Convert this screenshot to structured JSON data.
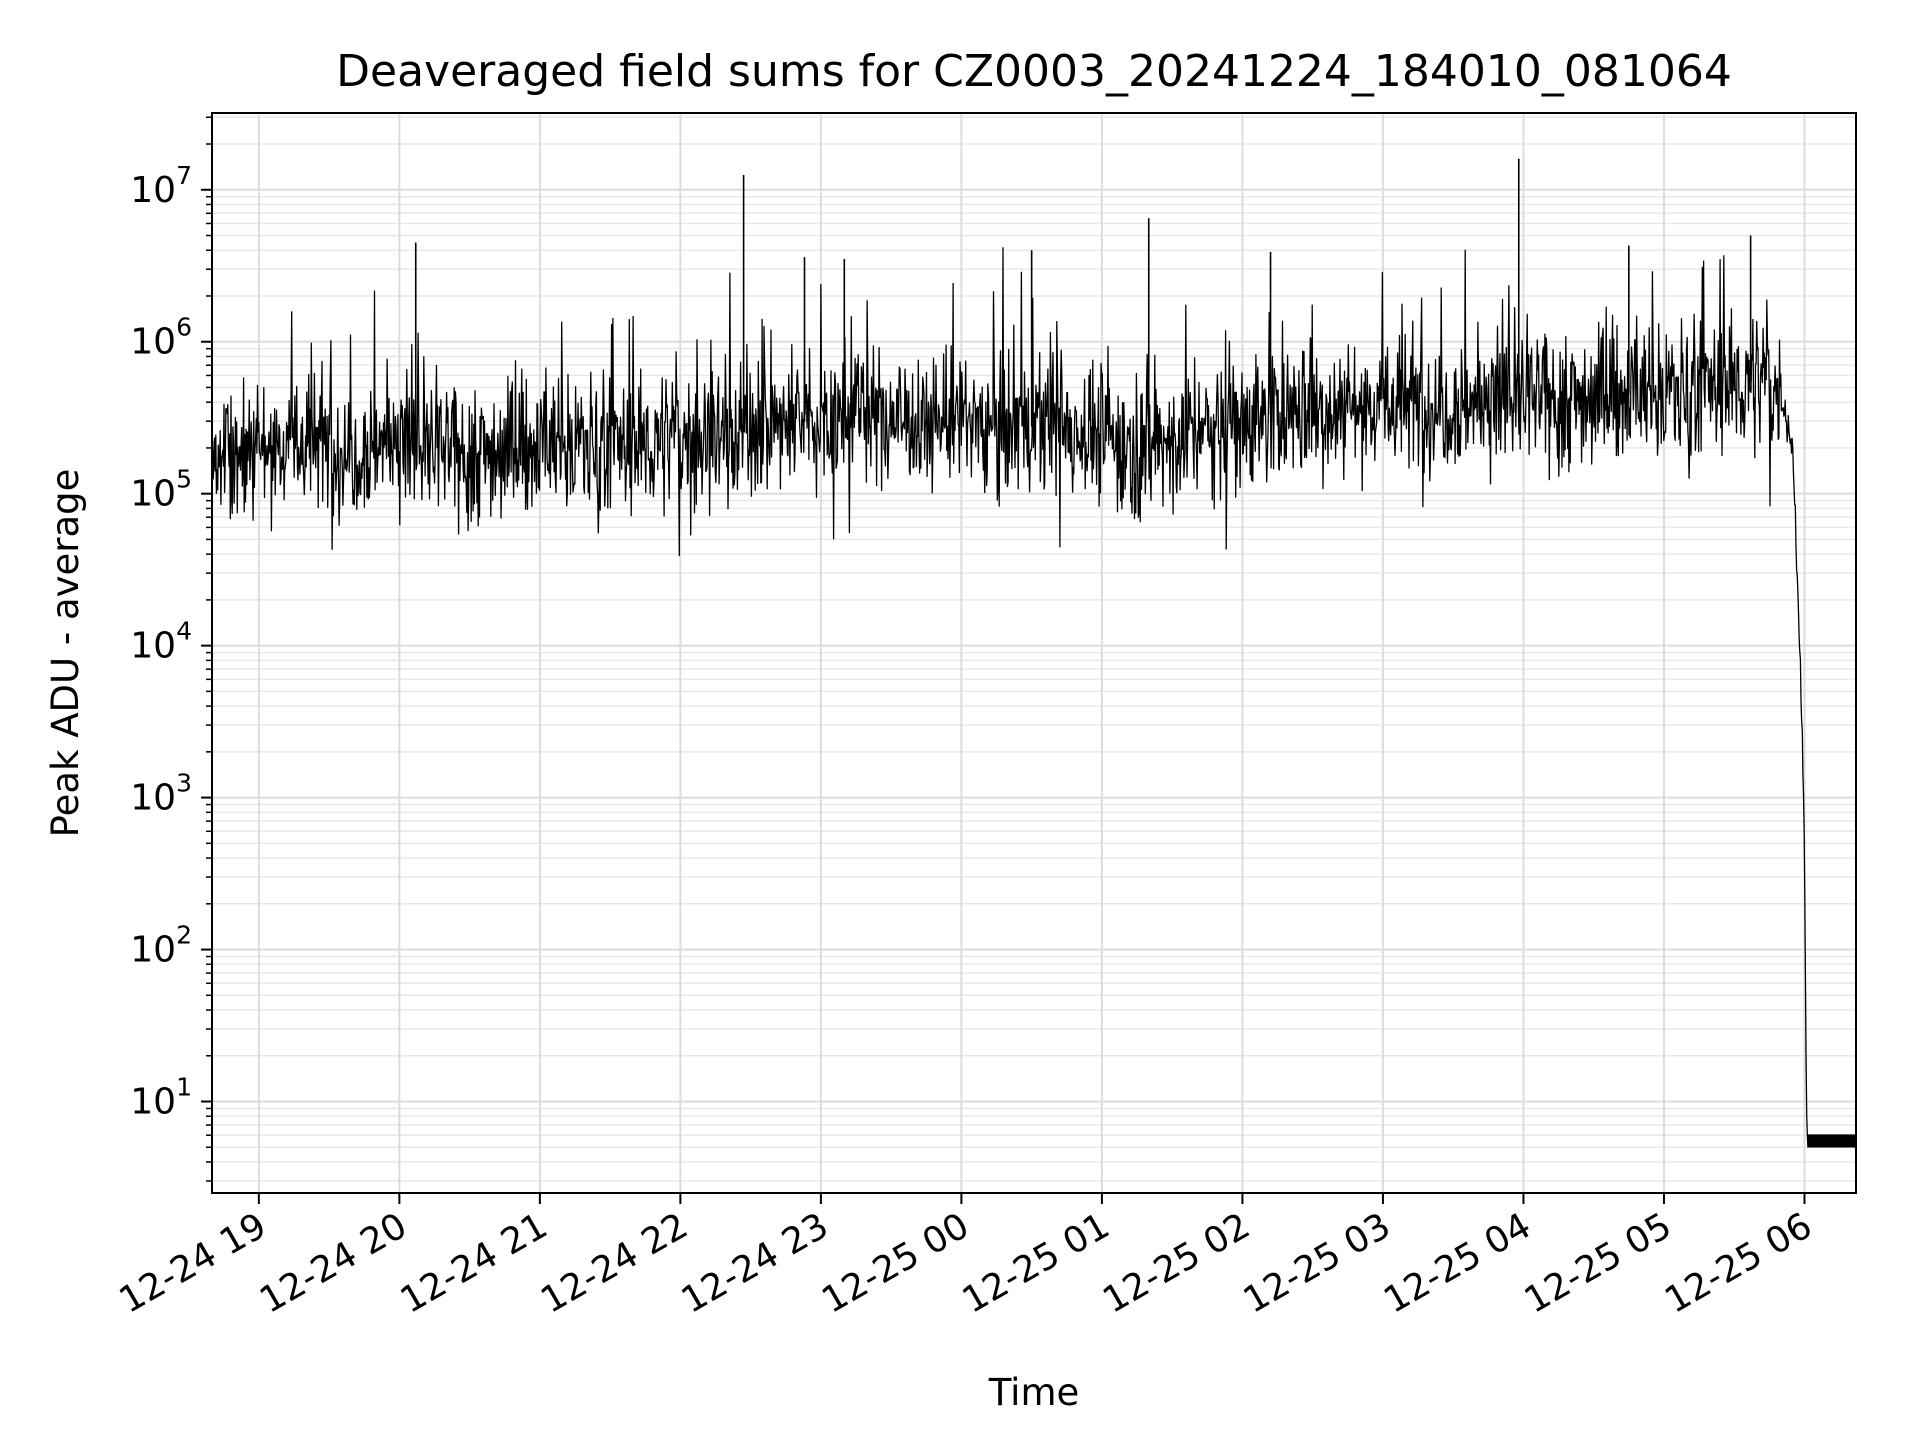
{
  "chart_data": {
    "type": "line",
    "title": "Deaveraged field sums for CZ0003_20241224_184010_081064",
    "xlabel": "Time",
    "ylabel": "Peak ADU - average",
    "yscale": "log",
    "ylim": [
      2.5,
      32000000
    ],
    "xlim": [
      "2024-12-24T18:40",
      "2024-12-25T06:22"
    ],
    "grid": {
      "major": true,
      "minor": true
    },
    "line_color": "#000000",
    "x_ticks": [
      {
        "at": "2024-12-24T19:00",
        "label": "12-24 19"
      },
      {
        "at": "2024-12-24T20:00",
        "label": "12-24 20"
      },
      {
        "at": "2024-12-24T21:00",
        "label": "12-24 21"
      },
      {
        "at": "2024-12-24T22:00",
        "label": "12-24 22"
      },
      {
        "at": "2024-12-24T23:00",
        "label": "12-24 23"
      },
      {
        "at": "2024-12-25T00:00",
        "label": "12-25 00"
      },
      {
        "at": "2024-12-25T01:00",
        "label": "12-25 01"
      },
      {
        "at": "2024-12-25T02:00",
        "label": "12-25 02"
      },
      {
        "at": "2024-12-25T03:00",
        "label": "12-25 03"
      },
      {
        "at": "2024-12-25T04:00",
        "label": "12-25 04"
      },
      {
        "at": "2024-12-25T05:00",
        "label": "12-25 05"
      },
      {
        "at": "2024-12-25T06:00",
        "label": "12-25 06"
      }
    ],
    "y_ticks": [
      {
        "value": 10,
        "base": "10",
        "exp": "1"
      },
      {
        "value": 100,
        "base": "10",
        "exp": "2"
      },
      {
        "value": 1000,
        "base": "10",
        "exp": "3"
      },
      {
        "value": 10000,
        "base": "10",
        "exp": "4"
      },
      {
        "value": 100000,
        "base": "10",
        "exp": "5"
      },
      {
        "value": 1000000,
        "base": "10",
        "exp": "6"
      },
      {
        "value": 10000000,
        "base": "10",
        "exp": "7"
      }
    ],
    "series": [
      {
        "x": [
          "2024-12-24T18:40",
          "2024-12-24T18:55",
          "2024-12-24T19:10",
          "2024-12-24T19:25",
          "2024-12-24T19:40",
          "2024-12-24T19:55",
          "2024-12-24T20:10",
          "2024-12-24T20:25",
          "2024-12-24T20:40",
          "2024-12-24T20:55",
          "2024-12-24T21:10",
          "2024-12-24T21:25",
          "2024-12-24T21:40",
          "2024-12-24T21:55",
          "2024-12-24T22:10",
          "2024-12-24T22:25",
          "2024-12-24T22:40",
          "2024-12-24T22:55",
          "2024-12-24T23:10",
          "2024-12-24T23:25",
          "2024-12-24T23:40",
          "2024-12-24T23:55",
          "2024-12-25T00:10",
          "2024-12-25T00:25",
          "2024-12-25T00:40",
          "2024-12-25T00:55",
          "2024-12-25T01:10",
          "2024-12-25T01:25",
          "2024-12-25T01:40",
          "2024-12-25T01:55",
          "2024-12-25T02:10",
          "2024-12-25T02:25",
          "2024-12-25T02:40",
          "2024-12-25T02:55",
          "2024-12-25T03:10",
          "2024-12-25T03:25",
          "2024-12-25T03:40",
          "2024-12-25T03:55",
          "2024-12-25T04:10",
          "2024-12-25T04:25",
          "2024-12-25T04:40",
          "2024-12-25T04:55",
          "2024-12-25T05:10",
          "2024-12-25T05:25",
          "2024-12-25T05:40",
          "2024-12-25T05:50",
          "2024-12-25T05:55",
          "2024-12-25T05:58",
          "2024-12-25T06:00",
          "2024-12-25T06:01",
          "2024-12-25T06:22"
        ],
        "y": [
          180000,
          200000,
          220000,
          210000,
          190000,
          230000,
          200000,
          180000,
          190000,
          200000,
          220000,
          210000,
          200000,
          230000,
          240000,
          260000,
          280000,
          300000,
          320000,
          330000,
          310000,
          300000,
          290000,
          280000,
          270000,
          260000,
          200000,
          220000,
          250000,
          300000,
          330000,
          350000,
          370000,
          400000,
          380000,
          390000,
          400000,
          420000,
          410000,
          430000,
          450000,
          470000,
          480000,
          500000,
          550000,
          450000,
          200000,
          10000,
          500,
          5.5,
          5.5
        ]
      }
    ],
    "spikes": [
      {
        "x": "2024-12-24T20:07",
        "y": 4500000
      },
      {
        "x": "2024-12-24T22:27",
        "y": 12500000
      },
      {
        "x": "2024-12-24T22:53",
        "y": 3600000
      },
      {
        "x": "2024-12-24T23:10",
        "y": 3500000
      },
      {
        "x": "2024-12-25T00:30",
        "y": 4000000
      },
      {
        "x": "2024-12-25T01:20",
        "y": 6500000
      },
      {
        "x": "2024-12-25T02:12",
        "y": 3900000
      },
      {
        "x": "2024-12-25T03:58",
        "y": 16000000
      },
      {
        "x": "2024-12-25T04:45",
        "y": 4300000
      },
      {
        "x": "2024-12-25T05:37",
        "y": 5000000
      }
    ]
  }
}
